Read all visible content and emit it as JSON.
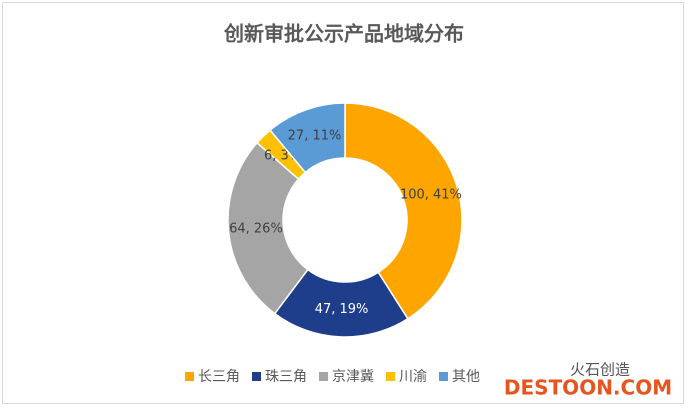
{
  "chart_data": {
    "type": "donut",
    "title": "创新审批公示产品地域分布",
    "categories": [
      "长三角",
      "珠三角",
      "京津冀",
      "川渝",
      "其他"
    ],
    "values": [
      100,
      47,
      64,
      6,
      27
    ],
    "value_labels": [
      "100, 41%",
      "47, 19%",
      "64, 26%",
      "6, 3%",
      "27, 11%"
    ],
    "colors": [
      "#FFA500",
      "#1E3E8C",
      "#A5A5A5",
      "#FFC000",
      "#5B9BD5"
    ],
    "legend": "bottom"
  },
  "watermarks": [
    "火石创造",
    "DESTOON.COM"
  ]
}
